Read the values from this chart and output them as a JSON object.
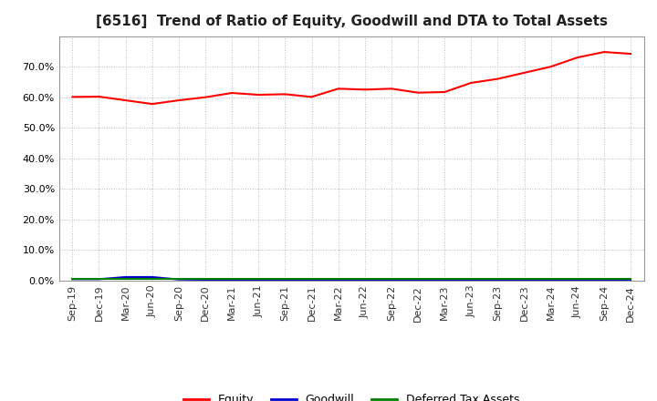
{
  "title": "[6516]  Trend of Ratio of Equity, Goodwill and DTA to Total Assets",
  "x_labels": [
    "Sep-19",
    "Dec-19",
    "Mar-20",
    "Jun-20",
    "Sep-20",
    "Dec-20",
    "Mar-21",
    "Jun-21",
    "Sep-21",
    "Dec-21",
    "Mar-22",
    "Jun-22",
    "Sep-22",
    "Dec-22",
    "Mar-23",
    "Jun-23",
    "Sep-23",
    "Dec-23",
    "Mar-24",
    "Jun-24",
    "Sep-24",
    "Dec-24"
  ],
  "equity": [
    0.601,
    0.602,
    0.59,
    0.578,
    0.59,
    0.6,
    0.614,
    0.608,
    0.61,
    0.601,
    0.628,
    0.625,
    0.628,
    0.615,
    0.617,
    0.647,
    0.66,
    0.68,
    0.7,
    0.73,
    0.748,
    0.742
  ],
  "goodwill": [
    0.005,
    0.005,
    0.012,
    0.012,
    0.004,
    0.003,
    0.003,
    0.003,
    0.003,
    0.003,
    0.003,
    0.003,
    0.003,
    0.003,
    0.003,
    0.003,
    0.003,
    0.003,
    0.003,
    0.003,
    0.003,
    0.003
  ],
  "dta": [
    0.006,
    0.006,
    0.006,
    0.006,
    0.006,
    0.006,
    0.006,
    0.006,
    0.006,
    0.006,
    0.006,
    0.006,
    0.006,
    0.006,
    0.006,
    0.006,
    0.006,
    0.006,
    0.006,
    0.006,
    0.006,
    0.006
  ],
  "equity_color": "#FF0000",
  "goodwill_color": "#0000CD",
  "dta_color": "#008000",
  "ylim_min": 0.0,
  "ylim_max": 0.8,
  "yticks": [
    0.0,
    0.1,
    0.2,
    0.3,
    0.4,
    0.5,
    0.6,
    0.7
  ],
  "background_color": "#FFFFFF",
  "plot_bg_color": "#FFFFFF",
  "grid_color": "#BBBBBB",
  "title_fontsize": 11,
  "tick_fontsize": 8,
  "legend_labels": [
    "Equity",
    "Goodwill",
    "Deferred Tax Assets"
  ],
  "legend_fontsize": 9
}
